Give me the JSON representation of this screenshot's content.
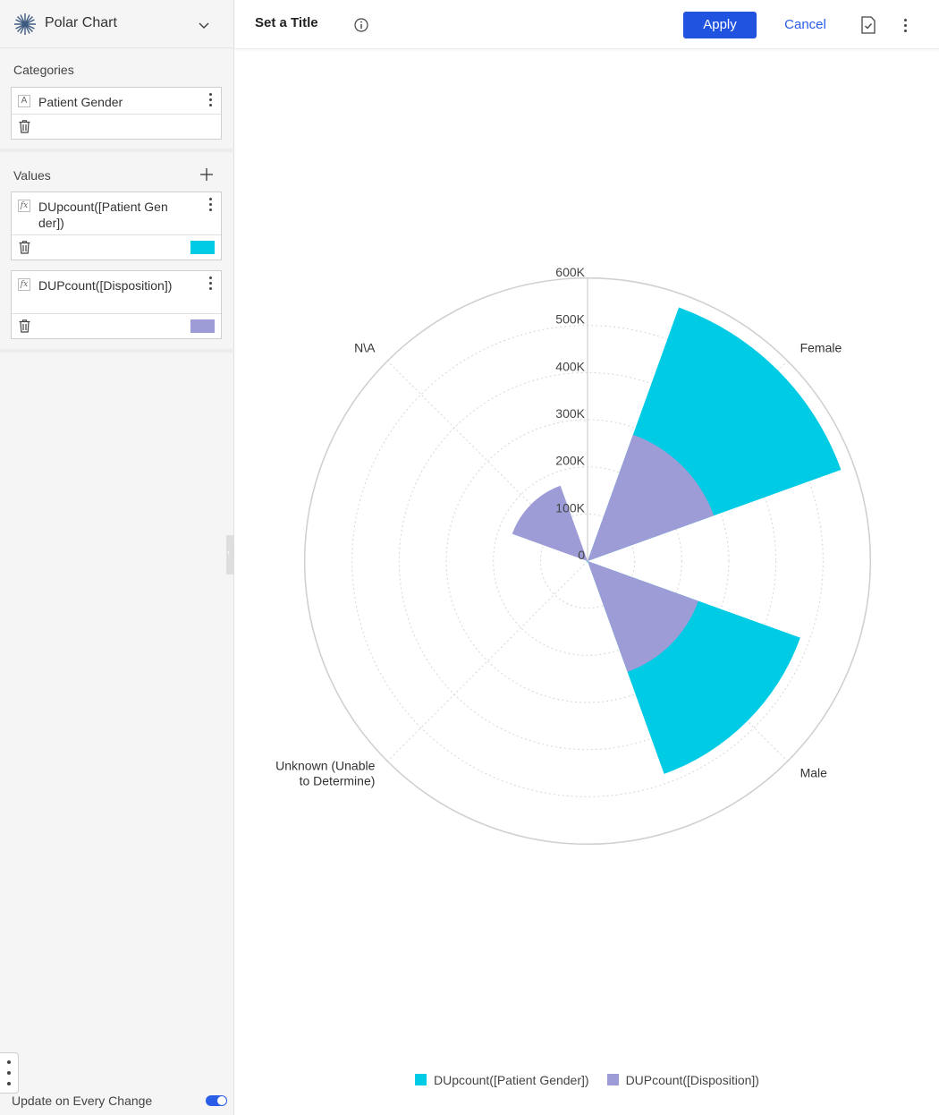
{
  "sidebar": {
    "chart_type": {
      "label": "Polar Chart",
      "icon": "polar-chart-icon"
    },
    "categories": {
      "label": "Categories",
      "fields": [
        {
          "name": "Patient Gender",
          "kind_icon": "A"
        }
      ]
    },
    "values": {
      "label": "Values",
      "fields": [
        {
          "name": "DUpcount([Patient Gender])",
          "kind_icon": "fx",
          "color": "#00cbe5"
        },
        {
          "name": "DUPcount([Disposition])",
          "kind_icon": "fx",
          "color": "#9d9cd6"
        }
      ]
    },
    "update_label": "Update on Every Change",
    "update_on_change": true
  },
  "header": {
    "title": "Set a Title",
    "apply_label": "Apply",
    "cancel_label": "Cancel"
  },
  "chart_data": {
    "type": "polar-bar",
    "categories": [
      "Female",
      "Male",
      "Unknown (Unable to Determine)",
      "N\\A"
    ],
    "series": [
      {
        "name": "DUpcount([Patient Gender])",
        "color": "#00cbe5",
        "values": [
          572000,
          480000,
          3000,
          0
        ]
      },
      {
        "name": "DUPcount([Disposition])",
        "color": "#9d9cd6",
        "values": [
          285000,
          250000,
          0,
          170000
        ]
      }
    ],
    "radial_ticks": [
      "0",
      "100K",
      "200K",
      "300K",
      "400K",
      "500K",
      "600K"
    ],
    "rmax": 600000,
    "legend": "bottom"
  }
}
